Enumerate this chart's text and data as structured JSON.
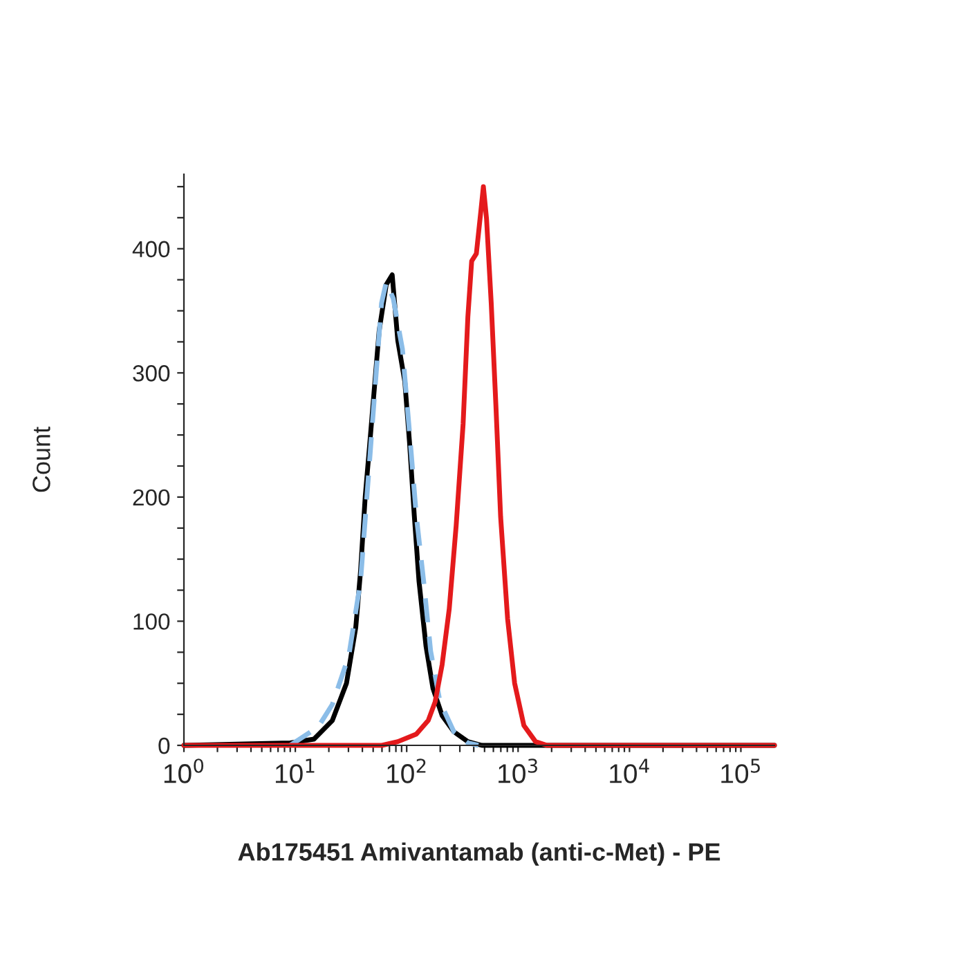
{
  "chart_data": {
    "type": "line",
    "xlabel": "Ab175451 Amivantamab (anti-c-Met) - PE",
    "ylabel": "Count",
    "log": "x",
    "grid": false,
    "legend": false,
    "marker": "none",
    "xlim": [
      1,
      200000
    ],
    "ylim": [
      0,
      460
    ],
    "xticks": [
      {
        "value": 1,
        "label": "10$^{0}$"
      },
      {
        "value": 10,
        "label": "10$^{1}$"
      },
      {
        "value": 100,
        "label": "10$^{2}$"
      },
      {
        "value": 1000,
        "label": "10$^{3}$"
      },
      {
        "value": 10000,
        "label": "10$^{4}$"
      },
      {
        "value": 100000,
        "label": "10$^{5}$"
      },
      {
        "value": 2,
        "label": null
      },
      {
        "value": 3,
        "label": null
      },
      {
        "value": 4,
        "label": null
      },
      {
        "value": 5,
        "label": null
      },
      {
        "value": 6,
        "label": null
      },
      {
        "value": 7,
        "label": null
      },
      {
        "value": 8,
        "label": null
      },
      {
        "value": 9,
        "label": null
      },
      {
        "value": 20,
        "label": null
      },
      {
        "value": 30,
        "label": null
      },
      {
        "value": 40,
        "label": null
      },
      {
        "value": 50,
        "label": null
      },
      {
        "value": 60,
        "label": null
      },
      {
        "value": 70,
        "label": null
      },
      {
        "value": 80,
        "label": null
      },
      {
        "value": 90,
        "label": null
      },
      {
        "value": 200,
        "label": null
      },
      {
        "value": 300,
        "label": null
      },
      {
        "value": 400,
        "label": null
      },
      {
        "value": 500,
        "label": null
      },
      {
        "value": 600,
        "label": null
      },
      {
        "value": 700,
        "label": null
      },
      {
        "value": 800,
        "label": null
      },
      {
        "value": 900,
        "label": null
      },
      {
        "value": 2000,
        "label": null
      },
      {
        "value": 3000,
        "label": null
      },
      {
        "value": 4000,
        "label": null
      },
      {
        "value": 5000,
        "label": null
      },
      {
        "value": 6000,
        "label": null
      },
      {
        "value": 7000,
        "label": null
      },
      {
        "value": 8000,
        "label": null
      },
      {
        "value": 9000,
        "label": null
      },
      {
        "value": 20000,
        "label": null
      },
      {
        "value": 30000,
        "label": null
      },
      {
        "value": 40000,
        "label": null
      },
      {
        "value": 50000,
        "label": null
      },
      {
        "value": 60000,
        "label": null
      },
      {
        "value": 70000,
        "label": null
      },
      {
        "value": 80000,
        "label": null
      },
      {
        "value": 90000,
        "label": null
      }
    ],
    "yticks": [
      0,
      100,
      200,
      300,
      400,
      {
        "value": 25,
        "label": null
      },
      {
        "value": 50,
        "label": null
      },
      {
        "value": 75,
        "label": null
      },
      {
        "value": 125,
        "label": null
      },
      {
        "value": 150,
        "label": null
      },
      {
        "value": 175,
        "label": null
      },
      {
        "value": 225,
        "label": null
      },
      {
        "value": 250,
        "label": null
      },
      {
        "value": 275,
        "label": null
      },
      {
        "value": 325,
        "label": null
      },
      {
        "value": 350,
        "label": null
      },
      {
        "value": 375,
        "label": null
      },
      {
        "value": 425,
        "label": null
      },
      {
        "value": 450,
        "label": null
      }
    ],
    "series": [
      {
        "color": "#000000",
        "line_style": "solid",
        "x": [
          1,
          9.0,
          14.7,
          21.5,
          28.8,
          34.9,
          38.5,
          42.4,
          46.7,
          51.4,
          56.6,
          65.5,
          74.1,
          83.2,
          96.2,
          106,
          117,
          129,
          149,
          172,
          208,
          265,
          354,
          473,
          200000
        ],
        "values": [
          0,
          2,
          5,
          20,
          50,
          95,
          140,
          200,
          244,
          289,
          334,
          371,
          379,
          326,
          293,
          244,
          185,
          132,
          80,
          46,
          24,
          11,
          3,
          0,
          0
        ]
      },
      {
        "color": "#8bbde8",
        "line_style": "dashed",
        "x": [
          9.0,
          16.1,
          21.5,
          30.2,
          38.5,
          44.5,
          51.4,
          59.4,
          65.5,
          75.7,
          91.6,
          106,
          122,
          142,
          164,
          199,
          265,
          354,
          440
        ],
        "values": [
          0,
          15,
          33,
          72,
          132,
          207,
          282,
          356,
          373,
          360,
          319,
          252,
          185,
          132,
          76,
          35,
          11,
          2,
          0
        ]
      },
      {
        "color": "#e41a1c",
        "line_style": "solid",
        "x": [
          1,
          60,
          83.2,
          122,
          156,
          180,
          208,
          241,
          278,
          321,
          354,
          383,
          422,
          464,
          488,
          521,
          574,
          632,
          697,
          805,
          931,
          1127,
          1435,
          1820,
          200000
        ],
        "values": [
          0,
          0,
          3,
          9,
          20,
          35,
          65,
          110,
          177,
          259,
          345,
          390,
          396,
          431,
          450,
          424,
          356,
          274,
          184,
          102,
          50,
          16,
          3,
          0,
          0
        ]
      }
    ]
  }
}
